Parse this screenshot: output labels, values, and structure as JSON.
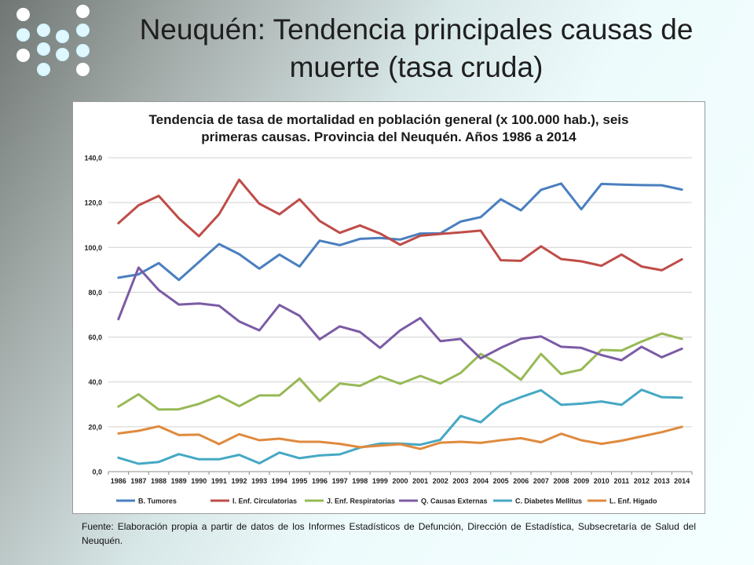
{
  "slide": {
    "title_line1": "Neuquén: Tendencia principales causas de",
    "title_line2": "muerte (tasa cruda)",
    "footnote": "Fuente: Elaboración propia a partir de datos de los Informes Estadísticos de Defunción, Dirección de Estadística, Subsecretaría de Salud del Neuquén."
  },
  "chart_data": {
    "type": "line",
    "title_line1": "Tendencia de tasa de mortalidad en población general (x 100.000 hab.), seis",
    "title_line2": "primeras causas. Provincia del Neuquén. Años 1986 a 2014",
    "ylim": [
      0,
      140
    ],
    "yticks": [
      "0,0",
      "20,0",
      "40,0",
      "60,0",
      "80,0",
      "100,0",
      "120,0",
      "140,0"
    ],
    "grid": true,
    "legend_position": "bottom",
    "x": [
      "1986",
      "1987",
      "1988",
      "1989",
      "1990",
      "1991",
      "1992",
      "1993",
      "1994",
      "1995",
      "1996",
      "1997",
      "1998",
      "1999",
      "2000",
      "2001",
      "2002",
      "2003",
      "2004",
      "2005",
      "2006",
      "2007",
      "2008",
      "2009",
      "2010",
      "2011",
      "2012",
      "2013",
      "2014"
    ],
    "series": [
      {
        "name": "B. Tumores",
        "color": "#4a7fbf",
        "values": [
          86.5,
          88,
          93,
          85.5,
          93.5,
          101.5,
          97,
          90.5,
          96.8,
          91.5,
          103,
          101,
          103.8,
          104.2,
          103.5,
          106.2,
          106.3,
          111.5,
          113.5,
          121.5,
          116.5,
          125.7,
          128.5,
          117,
          128.3,
          128,
          127.8,
          127.7,
          125.8
        ]
      },
      {
        "name": "I. Enf. Circulatorias",
        "color": "#bf4c48",
        "values": [
          110.8,
          118.8,
          123,
          113,
          105,
          114.8,
          130.2,
          119.5,
          114.8,
          121.5,
          111.8,
          106.5,
          109.8,
          106.2,
          101.2,
          105.2,
          106,
          106.7,
          107.5,
          94.3,
          94,
          100.5,
          94.8,
          93.8,
          91.8,
          96.8,
          91.5,
          89.8,
          94.7
        ]
      },
      {
        "name": "J. Enf. Respiratorias",
        "color": "#97b955",
        "values": [
          29,
          34.5,
          27.7,
          27.8,
          30.2,
          33.8,
          29.2,
          34,
          34,
          41.5,
          31.5,
          39.3,
          38.3,
          42.5,
          39.2,
          42.7,
          39.3,
          44,
          52.5,
          47.5,
          41,
          52.5,
          43.5,
          45.5,
          54.3,
          54,
          58,
          61.6,
          59.2
        ]
      },
      {
        "name": "Q. Causas Externas",
        "color": "#7b5ba5",
        "values": [
          68,
          91,
          81,
          74.5,
          75,
          74,
          67,
          63,
          74.3,
          69.5,
          59,
          64.8,
          62.3,
          55.2,
          63,
          68.5,
          58.2,
          59.2,
          50.5,
          55.2,
          59.2,
          60.3,
          55.7,
          55.2,
          52,
          49.7,
          55.7,
          51,
          54.8
        ]
      },
      {
        "name": "C. Diabetes Mellitus",
        "color": "#45a8c4",
        "values": [
          6.2,
          3.5,
          4.3,
          7.8,
          5.5,
          5.5,
          7.5,
          3.7,
          8.5,
          6,
          7.2,
          7.7,
          10.7,
          12.5,
          12.5,
          12,
          14.2,
          24.8,
          22,
          29.8,
          33.2,
          36.3,
          29.8,
          30.3,
          31.3,
          29.8,
          36.5,
          33.2,
          33
        ]
      },
      {
        "name": "L. Enf. Hígado",
        "color": "#df8a3e",
        "values": [
          17,
          18.2,
          20.2,
          16.3,
          16.5,
          12.3,
          16.7,
          14,
          14.7,
          13.3,
          13.3,
          12.4,
          10.9,
          11.6,
          12.2,
          10.1,
          12.9,
          13.3,
          12.8,
          14,
          14.9,
          13.1,
          16.9,
          14,
          12.4,
          13.8,
          15.7,
          17.6,
          20
        ]
      }
    ]
  }
}
